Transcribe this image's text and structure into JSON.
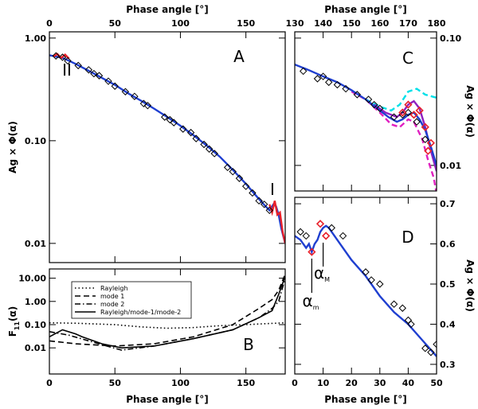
{
  "chart_data": [
    {
      "type": "line",
      "xlabel": "Phase angle [°]",
      "ylabel": "Ag × Φ(α)",
      "xlim": [
        0,
        180
      ],
      "xticks": [
        0,
        50,
        100,
        150
      ],
      "ylim": [
        0.0065,
        1.15
      ],
      "ylog": true,
      "yticks": [
        {
          "value": 1,
          "label": "1.00"
        },
        {
          "value": 0.1,
          "label": "0.10"
        },
        0.01
      ],
      "annotations": [
        "A",
        "II",
        "I"
      ],
      "series": [
        {
          "color": "#1f3fd0",
          "style": "solid",
          "x": [
            0,
            5,
            10,
            15,
            20,
            30,
            40,
            50,
            60,
            70,
            80,
            90,
            100,
            110,
            120,
            130,
            140,
            150,
            155,
            160,
            165,
            168,
            171,
            173,
            175,
            177,
            180
          ],
          "values": [
            0.68,
            0.66,
            0.64,
            0.6,
            0.56,
            0.48,
            0.41,
            0.35,
            0.29,
            0.245,
            0.205,
            0.17,
            0.14,
            0.113,
            0.09,
            0.07,
            0.052,
            0.038,
            0.032,
            0.027,
            0.023,
            0.021,
            0.024,
            0.023,
            0.019,
            0.014,
            0.01
          ]
        },
        {
          "color": "#e8202a",
          "style": "solid",
          "x": [
            3,
            6,
            9,
            12,
            15
          ],
          "values": [
            0.66,
            0.7,
            0.64,
            0.69,
            0.63
          ]
        },
        {
          "color": "#e8202a",
          "style": "solid",
          "x": [
            168,
            170,
            172,
            174,
            176,
            178,
            180
          ],
          "values": [
            0.024,
            0.02,
            0.026,
            0.019,
            0.02,
            0.013,
            0.01
          ]
        },
        {
          "color": "#000000",
          "marker": "diamond",
          "x": [
            5,
            10,
            14,
            22,
            30,
            34,
            38,
            45,
            50,
            58,
            65,
            72,
            75,
            88,
            92,
            95,
            102,
            108,
            112,
            118,
            122,
            126,
            136,
            140,
            145,
            150,
            155,
            160,
            164,
            168
          ],
          "values": [
            0.67,
            0.65,
            0.6,
            0.54,
            0.49,
            0.45,
            0.43,
            0.38,
            0.34,
            0.3,
            0.27,
            0.23,
            0.22,
            0.17,
            0.16,
            0.15,
            0.13,
            0.12,
            0.105,
            0.092,
            0.083,
            0.075,
            0.055,
            0.05,
            0.043,
            0.036,
            0.031,
            0.026,
            0.024,
            0.021
          ]
        }
      ]
    },
    {
      "type": "line",
      "xlabel": "Phase angle [°]",
      "ylabel": {
        "text": "F",
        "sub": "11",
        "after": "(α)"
      },
      "xlim": [
        0,
        180
      ],
      "xticks": [
        0,
        50,
        100,
        150
      ],
      "ylim": [
        0.00075,
        25
      ],
      "ylog": true,
      "yticks": [
        {
          "value": 10,
          "label": "10.00"
        },
        {
          "value": 1,
          "label": "1.00"
        },
        {
          "value": 0.1,
          "label": "0.10"
        },
        0.01
      ],
      "annotations": [
        "B"
      ],
      "legend": "upper left",
      "series": [
        {
          "name": "Rayleigh",
          "color": "#000000",
          "style": "dotted",
          "x": [
            0,
            20,
            50,
            70,
            90,
            110,
            130,
            150,
            165,
            180
          ],
          "values": [
            0.12,
            0.115,
            0.1,
            0.08,
            0.07,
            0.075,
            0.09,
            0.1,
            0.11,
            0.12
          ]
        },
        {
          "name": "mode 1",
          "color": "#000000",
          "style": "dashed",
          "x": [
            0,
            20,
            50,
            80,
            110,
            140,
            160,
            170,
            175,
            180
          ],
          "values": [
            0.02,
            0.015,
            0.012,
            0.015,
            0.03,
            0.1,
            0.5,
            1.2,
            3,
            15
          ]
        },
        {
          "name": "mode 2",
          "color": "#000000",
          "style": "dashdot",
          "x": [
            0,
            15,
            30,
            55,
            80,
            110,
            140,
            160,
            170,
            175,
            180
          ],
          "values": [
            0.05,
            0.035,
            0.02,
            0.008,
            0.012,
            0.025,
            0.06,
            0.2,
            0.5,
            1,
            10
          ]
        },
        {
          "name": "Rayleigh/mode-1/mode-2",
          "color": "#000000",
          "style": "solid",
          "x": [
            0,
            10,
            20,
            25,
            40,
            55,
            80,
            110,
            140,
            160,
            170,
            175,
            180
          ],
          "values": [
            0.03,
            0.06,
            0.04,
            0.03,
            0.015,
            0.01,
            0.012,
            0.025,
            0.06,
            0.2,
            0.4,
            2,
            12
          ]
        }
      ]
    },
    {
      "type": "line",
      "xlabel": "Phase angle [°]",
      "ylabel": "Ag × Φ(α)",
      "xlim": [
        130,
        180
      ],
      "xticks": [
        130,
        140,
        150,
        160,
        170,
        180
      ],
      "ylim": [
        0.0063,
        0.112
      ],
      "ylog": true,
      "yticks": [
        {
          "value": 0.1,
          "label": "0.10"
        },
        0.01
      ],
      "annotations": [
        "C"
      ],
      "series": [
        {
          "color": "#00e0e8",
          "style": "dashed",
          "x": [
            155,
            160,
            164,
            167,
            170,
            173,
            176,
            180
          ],
          "values": [
            0.033,
            0.029,
            0.027,
            0.03,
            0.038,
            0.04,
            0.036,
            0.034
          ]
        },
        {
          "color": "#e020c0",
          "style": "dashed",
          "x": [
            150,
            155,
            160,
            164,
            167,
            170,
            172,
            175,
            177,
            179,
            180
          ],
          "values": [
            0.038,
            0.033,
            0.026,
            0.021,
            0.02,
            0.023,
            0.022,
            0.016,
            0.011,
            0.008,
            0.006
          ]
        },
        {
          "color": "#9020c0",
          "style": "solid",
          "x": [
            158,
            162,
            166,
            168,
            170,
            172,
            174,
            176,
            178,
            180
          ],
          "values": [
            0.03,
            0.026,
            0.024,
            0.026,
            0.03,
            0.032,
            0.028,
            0.02,
            0.013,
            0.009
          ]
        },
        {
          "color": "#1f3fd0",
          "style": "solid",
          "x": [
            130,
            135,
            140,
            145,
            150,
            155,
            160,
            163,
            166,
            168,
            170,
            172,
            174,
            176,
            178,
            180
          ],
          "values": [
            0.062,
            0.056,
            0.05,
            0.045,
            0.039,
            0.033,
            0.027,
            0.024,
            0.022,
            0.023,
            0.025,
            0.026,
            0.023,
            0.019,
            0.014,
            0.01
          ]
        },
        {
          "color": "#000000",
          "marker": "diamond",
          "x": [
            133,
            138,
            140,
            142,
            145,
            148,
            152,
            156,
            158,
            160,
            165,
            168,
            170,
            173,
            176
          ],
          "values": [
            0.055,
            0.048,
            0.05,
            0.045,
            0.043,
            0.04,
            0.036,
            0.033,
            0.03,
            0.028,
            0.024,
            0.025,
            0.026,
            0.022,
            0.016
          ]
        },
        {
          "color": "#e8202a",
          "marker": "diamond",
          "x": [
            168,
            170,
            172,
            174,
            176,
            177,
            178
          ],
          "values": [
            0.026,
            0.03,
            0.025,
            0.027,
            0.02,
            0.013,
            0.015
          ]
        }
      ]
    },
    {
      "type": "line",
      "xlabel": "Phase angle [°]",
      "ylabel": "Ag × Φ(α)",
      "xlim": [
        0,
        50
      ],
      "xticks": [
        0,
        10,
        20,
        30,
        40,
        50
      ],
      "ylim": [
        0.276,
        0.716
      ],
      "yticks": [
        0.3,
        0.4,
        0.5,
        0.6,
        0.7
      ],
      "annotations": [
        "D",
        {
          "text": "α",
          "sub": "m"
        },
        {
          "text": "α",
          "sub": "M"
        }
      ],
      "series": [
        {
          "color": "#1f3fd0",
          "style": "solid",
          "x": [
            0,
            2,
            4,
            5,
            6,
            7,
            8,
            9,
            10,
            11,
            12,
            14,
            16,
            20,
            25,
            30,
            35,
            40,
            45,
            50
          ],
          "values": [
            0.62,
            0.61,
            0.59,
            0.6,
            0.58,
            0.6,
            0.61,
            0.63,
            0.64,
            0.645,
            0.64,
            0.62,
            0.6,
            0.56,
            0.52,
            0.47,
            0.43,
            0.4,
            0.36,
            0.32
          ]
        },
        {
          "color": "#000000",
          "marker": "diamond",
          "x": [
            2,
            4,
            13,
            17,
            25,
            27,
            30,
            35,
            38,
            40,
            41,
            46,
            48,
            50
          ],
          "values": [
            0.63,
            0.62,
            0.64,
            0.62,
            0.53,
            0.51,
            0.5,
            0.45,
            0.44,
            0.41,
            0.4,
            0.34,
            0.33,
            0.35
          ]
        },
        {
          "color": "#e8202a",
          "marker": "diamond",
          "x": [
            6,
            9,
            11
          ],
          "values": [
            0.58,
            0.65,
            0.62
          ]
        }
      ]
    }
  ]
}
